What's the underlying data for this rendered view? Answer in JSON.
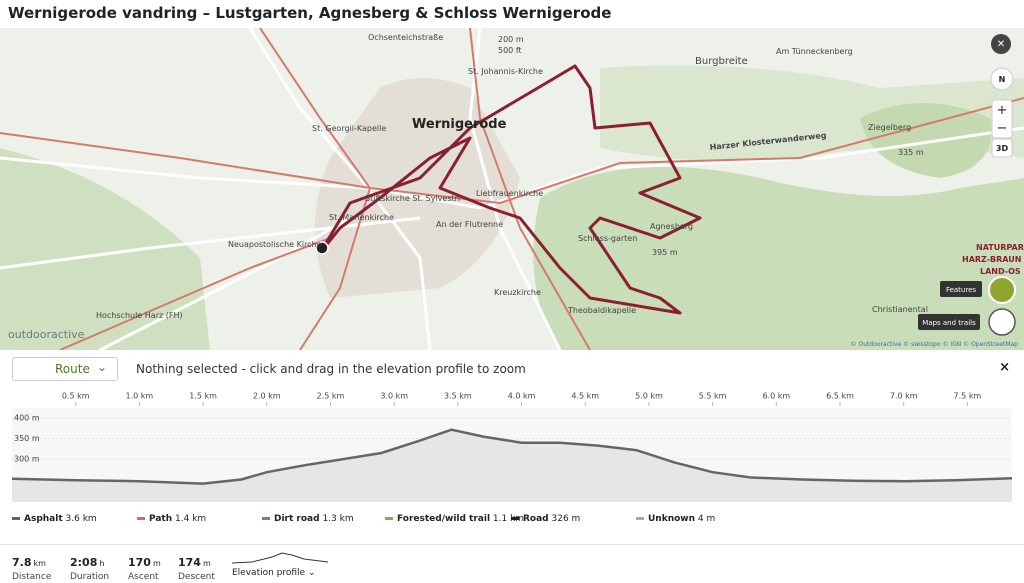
{
  "header": {
    "title": "Wernigerode vandring – Lustgarten, Agnesberg & Schloss Wernigerode"
  },
  "map": {
    "labels": [
      "Wernigerode",
      "Burgbreite",
      "Ziegelberg",
      "335 m",
      "Agnesberg",
      "395 m",
      "Schloss-garten",
      "St. Georgii-Kapelle",
      "St. Marienkirche",
      "Liebfrauenkirche",
      "Stiftskirche St. Sylvestri",
      "Neuapostolische Kirche",
      "Hochschule Harz (FH)",
      "Kreuzkirche",
      "Theobaldikapelle",
      "Christianental",
      "Harzer Klosterwanderweg",
      "St. Johannis-Kirche",
      "An der Flutrenne",
      "Ochsenteichstraße",
      "Am Tünneckenberg",
      "200 m",
      "500 ft",
      "NATURPARK",
      "HARZ-BRAUN",
      "LAND-OS"
    ],
    "logo": "outdooractive",
    "attribution": "© Outdooractive © swisstopo © IGN © OpenStreetMap",
    "controls": {
      "close": "✕",
      "north": "N",
      "zoom_in": "+",
      "zoom_out": "−",
      "three_d": "3D",
      "features": "Features",
      "maps_and_trails": "Maps and trails"
    }
  },
  "toolbar": {
    "dropdown": "Route",
    "hint": "Nothing selected - click and drag in the elevation profile to zoom",
    "close": "×"
  },
  "elevation": {
    "type": "line",
    "x": [
      0,
      0.5,
      1,
      1.5,
      1.8,
      2.0,
      2.3,
      2.6,
      2.9,
      3.2,
      3.45,
      3.7,
      4.0,
      4.3,
      4.6,
      4.9,
      5.2,
      5.5,
      5.8,
      6.2,
      6.6,
      7.0,
      7.4,
      7.85
    ],
    "values": [
      252,
      248,
      246,
      240,
      250,
      268,
      285,
      300,
      315,
      345,
      372,
      355,
      340,
      340,
      333,
      322,
      292,
      268,
      255,
      250,
      247,
      246,
      248,
      253
    ],
    "xlim": [
      0,
      7.85
    ],
    "ylim": [
      195,
      425
    ],
    "xticks": [
      {
        "value": 0.5,
        "label": "0.5 km"
      },
      {
        "value": 1,
        "label": "1.0 km"
      },
      {
        "value": 1.5,
        "label": "1.5 km"
      },
      {
        "value": 2,
        "label": "2.0 km"
      },
      {
        "value": 2.5,
        "label": "2.5 km"
      },
      {
        "value": 3,
        "label": "3.0 km"
      },
      {
        "value": 3.5,
        "label": "3.5 km"
      },
      {
        "value": 4,
        "label": "4.0 km"
      },
      {
        "value": 4.5,
        "label": "4.5 km"
      },
      {
        "value": 5,
        "label": "5.0 km"
      },
      {
        "value": 5.5,
        "label": "5.5 km"
      },
      {
        "value": 6,
        "label": "6.0 km"
      },
      {
        "value": 6.5,
        "label": "6.5 km"
      },
      {
        "value": 7,
        "label": "7.0 km"
      },
      {
        "value": 7.5,
        "label": "7.5 km"
      }
    ],
    "yticks": [
      {
        "value": 300,
        "label": "300 m"
      },
      {
        "value": 350,
        "label": "350 m"
      },
      {
        "value": 400,
        "label": "400 m"
      }
    ],
    "color": "#666666"
  },
  "surfaces": [
    {
      "name": "Asphalt",
      "amount": "3.6 km",
      "color": "#666666"
    },
    {
      "name": "Path",
      "amount": "1.4 km",
      "color": "#e0665a"
    },
    {
      "name": "Dirt road",
      "amount": "1.3 km",
      "color": "#5b7fc7"
    },
    {
      "name": "Forested/wild trail",
      "amount": "1.1 km",
      "color": "#6cb84a"
    },
    {
      "name": "Road",
      "amount": "326 m",
      "color": "#222222"
    },
    {
      "name": "Unknown",
      "amount": "4 m",
      "color": "#aaaaaa"
    }
  ],
  "stats": [
    {
      "value": "7.8",
      "unit": "km",
      "label": "Distance"
    },
    {
      "value": "2:08",
      "unit": "h",
      "label": "Duration"
    },
    {
      "value": "170",
      "unit": "m",
      "label": "Ascent"
    },
    {
      "value": "174",
      "unit": "m",
      "label": "Descent"
    }
  ],
  "profile_toggle": "Elevation profile"
}
